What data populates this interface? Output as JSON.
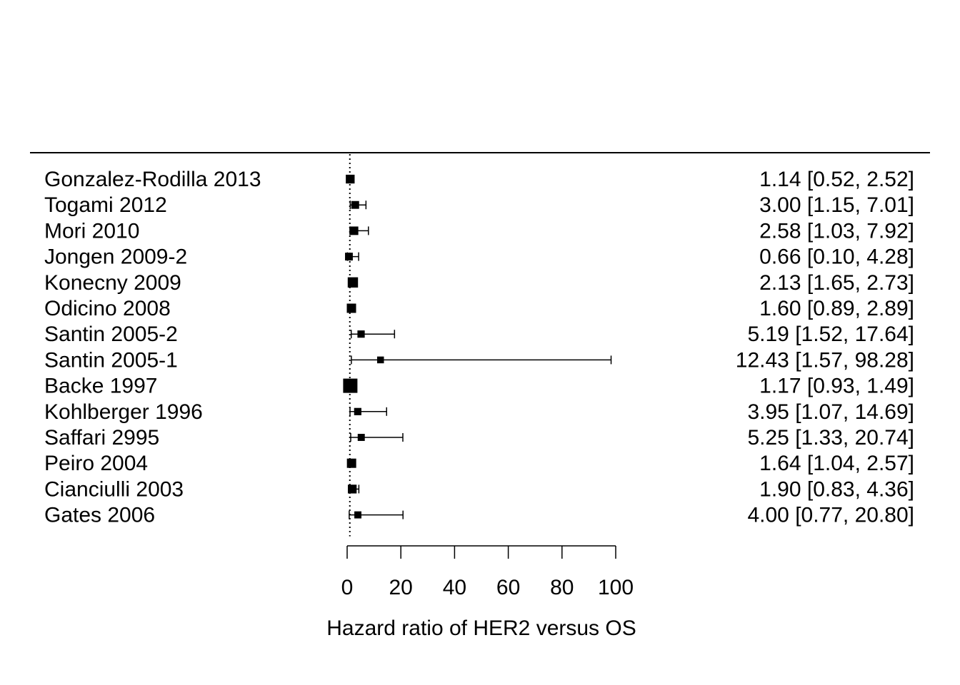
{
  "chart_data": {
    "type": "forest",
    "xlabel": "Hazard ratio of HER2 versus OS",
    "xlim": [
      0,
      100
    ],
    "xticks": [
      0,
      20,
      40,
      60,
      80,
      100
    ],
    "reference_line": 1,
    "studies": [
      {
        "label": "Gonzalez-Rodilla 2013",
        "hr": 1.14,
        "lo": 0.52,
        "hi": 2.52,
        "ci_text": "1.14 [0.52,  2.52]",
        "weight": 0.45
      },
      {
        "label": "Togami 2012",
        "hr": 3.0,
        "lo": 1.15,
        "hi": 7.01,
        "ci_text": "3.00 [1.15,  7.01]",
        "weight": 0.35
      },
      {
        "label": "Mori 2010",
        "hr": 2.58,
        "lo": 1.03,
        "hi": 7.92,
        "ci_text": "2.58 [1.03,  7.92]",
        "weight": 0.42
      },
      {
        "label": "Jongen 2009-2",
        "hr": 0.66,
        "lo": 0.1,
        "hi": 4.28,
        "ci_text": "0.66 [0.10,  4.28]",
        "weight": 0.35
      },
      {
        "label": "Konecny 2009",
        "hr": 2.13,
        "lo": 1.65,
        "hi": 2.73,
        "ci_text": "2.13 [1.65,  2.73]",
        "weight": 0.6
      },
      {
        "label": "Odicino 2008",
        "hr": 1.6,
        "lo": 0.89,
        "hi": 2.89,
        "ci_text": "1.60 [0.89,  2.89]",
        "weight": 0.5
      },
      {
        "label": "Santin 2005-2",
        "hr": 5.19,
        "lo": 1.52,
        "hi": 17.64,
        "ci_text": "5.19 [1.52, 17.64]",
        "weight": 0.3
      },
      {
        "label": "Santin 2005-1",
        "hr": 12.43,
        "lo": 1.57,
        "hi": 98.28,
        "ci_text": "12.43 [1.57, 98.28]",
        "weight": 0.25
      },
      {
        "label": "Backe 1997",
        "hr": 1.17,
        "lo": 0.93,
        "hi": 1.49,
        "ci_text": "1.17 [0.93,  1.49]",
        "weight": 1.0
      },
      {
        "label": "Kohlberger 1996",
        "hr": 3.95,
        "lo": 1.07,
        "hi": 14.69,
        "ci_text": "3.95 [1.07, 14.69]",
        "weight": 0.3
      },
      {
        "label": "Saffari 2995",
        "hr": 5.25,
        "lo": 1.33,
        "hi": 20.74,
        "ci_text": "5.25 [1.33, 20.74]",
        "weight": 0.28
      },
      {
        "label": "Peiro 2004",
        "hr": 1.64,
        "lo": 1.04,
        "hi": 2.57,
        "ci_text": "1.64 [1.04,  2.57]",
        "weight": 0.5
      },
      {
        "label": "Cianciulli 2003",
        "hr": 1.9,
        "lo": 0.83,
        "hi": 4.36,
        "ci_text": "1.90 [0.83,  4.36]",
        "weight": 0.45
      },
      {
        "label": "Gates 2006",
        "hr": 4.0,
        "lo": 0.77,
        "hi": 20.8,
        "ci_text": "4.00 [0.77, 20.80]",
        "weight": 0.28
      }
    ]
  }
}
